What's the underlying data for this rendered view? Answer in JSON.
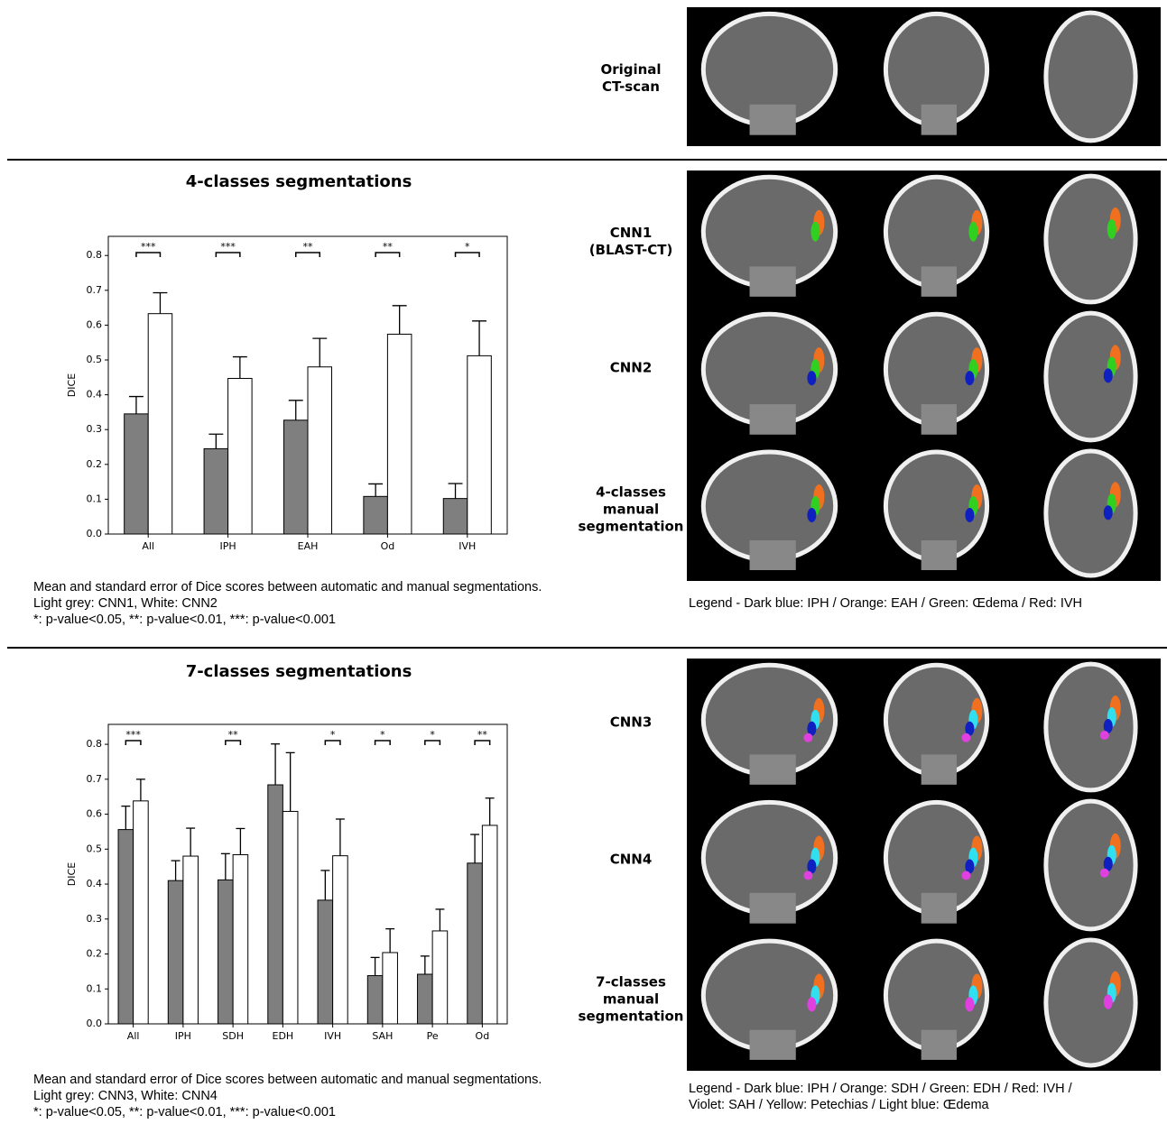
{
  "chart_data": [
    {
      "type": "bar",
      "title": "4-classes segmentations",
      "ylabel": "DICE",
      "categories": [
        "All",
        "IPH",
        "EAH",
        "Od",
        "IVH"
      ],
      "series": [
        {
          "color": "#7f7f7f",
          "values": [
            0.345,
            0.245,
            0.327,
            0.108,
            0.102
          ],
          "errors": [
            0.05,
            0.042,
            0.057,
            0.036,
            0.043
          ]
        },
        {
          "color": "#ffffff",
          "values": [
            0.633,
            0.447,
            0.48,
            0.574,
            0.512
          ],
          "errors": [
            0.06,
            0.062,
            0.082,
            0.082,
            0.1
          ]
        }
      ],
      "annotations": [
        "***",
        "***",
        "**",
        "**",
        "*"
      ],
      "ylim": [
        0,
        0.855
      ],
      "yticks": [
        {
          "value": 0,
          "label": "0.0"
        },
        0.1,
        0.2,
        0.3,
        0.4,
        0.5,
        0.6,
        0.7,
        0.8
      ]
    },
    {
      "type": "bar",
      "title": "7-classes segmentations",
      "ylabel": "DICE",
      "categories": [
        "All",
        "IPH",
        "SDH",
        "EDH",
        "IVH",
        "SAH",
        "Pe",
        "Od"
      ],
      "series": [
        {
          "color": "#7f7f7f",
          "values": [
            0.556,
            0.41,
            0.412,
            0.684,
            0.354,
            0.138,
            0.142,
            0.46
          ],
          "errors": [
            0.067,
            0.057,
            0.075,
            0.117,
            0.085,
            0.052,
            0.052,
            0.082
          ]
        },
        {
          "color": "#ffffff",
          "values": [
            0.638,
            0.48,
            0.484,
            0.608,
            0.481,
            0.204,
            0.266,
            0.568
          ],
          "errors": [
            0.062,
            0.08,
            0.075,
            0.168,
            0.105,
            0.068,
            0.062,
            0.078
          ]
        }
      ],
      "annotations": [
        "***",
        null,
        "**",
        null,
        "*",
        "*",
        "*",
        "**"
      ],
      "ylim": [
        0,
        0.857
      ],
      "yticks": [
        {
          "value": 0,
          "label": "0.0"
        },
        0.1,
        0.2,
        0.3,
        0.4,
        0.5,
        0.6,
        0.7,
        0.8
      ]
    }
  ],
  "figure": {
    "row_labels": [
      [
        "Original",
        "CT-scan"
      ],
      [
        "CNN1",
        "(BLAST-CT)"
      ],
      [
        "CNN2"
      ],
      [
        "4-classes",
        "manual",
        "segmentation"
      ],
      [
        "CNN3"
      ],
      [
        "CNN4"
      ],
      [
        "7-classes",
        "manual",
        "segmentation"
      ]
    ],
    "captions": [
      [
        "Mean and standard error of Dice scores between automatic and manual segmentations.",
        "Light grey: CNN1, White: CNN2",
        "*: p-value<0.05, **: p-value<0.01, ***: p-value<0.001"
      ],
      [
        "Mean and standard error of Dice scores between automatic and manual segmentations.",
        "Light grey: CNN3, White: CNN4",
        "*: p-value<0.05, **: p-value<0.01, ***: p-value<0.001"
      ]
    ],
    "legends": [
      [
        "Legend - Dark blue: IPH / Orange: EAH / Green: Œdema / Red: IVH"
      ],
      [
        "Legend - Dark blue: IPH / Orange: SDH / Green: EDH / Red: IVH /",
        "Violet: SAH / Yellow: Petechias / Light blue: Œdema"
      ]
    ]
  }
}
